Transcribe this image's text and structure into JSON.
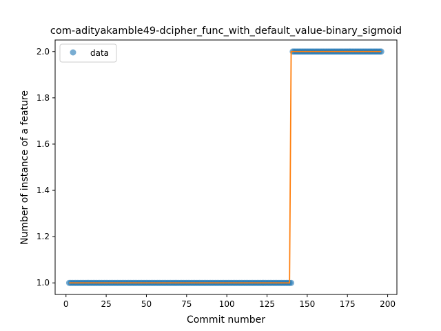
{
  "chart_data": {
    "type": "scatter",
    "title": "com-adityakamble49-dcipher_func_with_default_value-binary_sigmoid",
    "xlabel": "Commit number",
    "ylabel": "Number of instance of a feature",
    "xlim": [
      -6.75,
      205.75
    ],
    "ylim": [
      0.95,
      2.05
    ],
    "xticks": [
      0,
      25,
      50,
      75,
      100,
      125,
      150,
      175,
      200
    ],
    "yticks": [
      1.0,
      1.2,
      1.4,
      1.6,
      1.8,
      2.0
    ],
    "ytick_format": "fixed1",
    "legend": {
      "position": "top-left",
      "entries": [
        "data"
      ]
    },
    "grid": false,
    "series": [
      {
        "name": "data",
        "kind": "markers",
        "color": "#1f77b4",
        "segments": [
          {
            "x_start": 2,
            "x_end": 140,
            "y": 1.0
          },
          {
            "x_start": 141,
            "x_end": 196,
            "y": 2.0
          }
        ]
      },
      {
        "kind": "line",
        "color": "#ff7f0e",
        "x": [
          2,
          139,
          140,
          196
        ],
        "y": [
          1.0,
          1.0,
          2.0,
          2.0
        ]
      }
    ]
  }
}
